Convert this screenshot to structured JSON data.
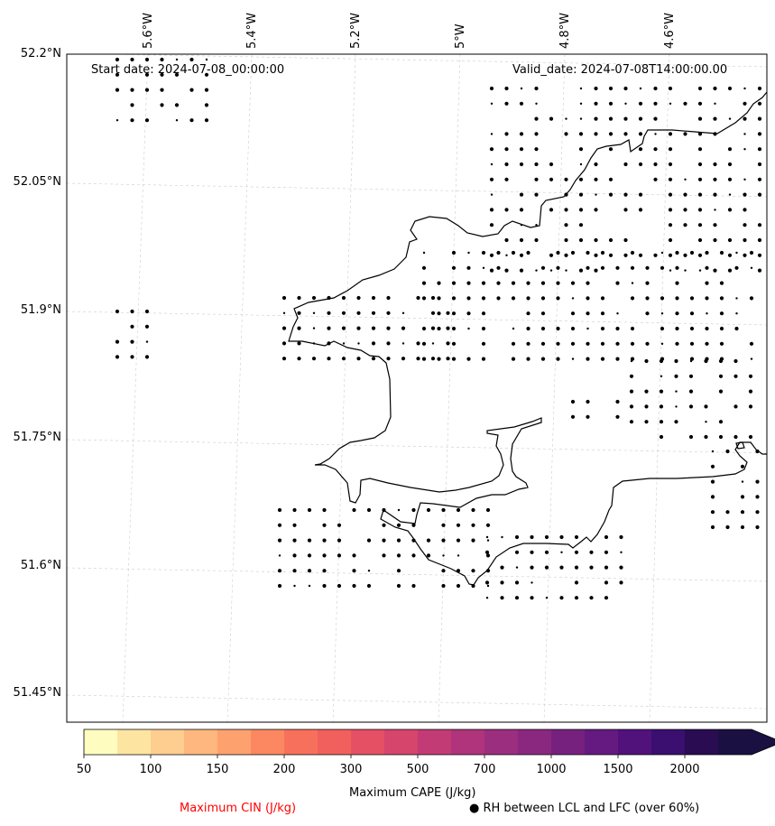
{
  "header": {
    "start_date": "Start date: 2024-07-08_00:00:00",
    "valid_date": "Valid_date: 2024-07-08T14:00:00.00"
  },
  "axes": {
    "lat_labels": [
      "52.2°N",
      "52.05°N",
      "51.9°N",
      "51.75°N",
      "51.6°N",
      "51.45°N"
    ],
    "lon_labels": [
      "5.6°W",
      "5.4°W",
      "5.2°W",
      "5°W",
      "4.8°W",
      "4.6°W"
    ],
    "gridlines": true
  },
  "colorbar": {
    "title": "Maximum CAPE (J/kg)",
    "ticks": [
      "50",
      "100",
      "150",
      "200",
      "300",
      "500",
      "700",
      "1000",
      "1500",
      "2000"
    ],
    "colors": [
      "#fefdbf",
      "#fde5a1",
      "#fecd90",
      "#feb77e",
      "#fda16f",
      "#fb8861",
      "#f7705c",
      "#f1605d",
      "#e55064",
      "#d6456c",
      "#c23b75",
      "#af347b",
      "#9c2e7f",
      "#8a287f",
      "#77217f",
      "#641a80",
      "#51127c",
      "#3b0f70",
      "#2a0c52",
      "#1a1042"
    ]
  },
  "legend": {
    "cin_label": "Maximum CIN (J/kg)",
    "rh_label": "● RH between LCL and LFC (over 60%)",
    "cin_color": "#ff0000"
  }
}
